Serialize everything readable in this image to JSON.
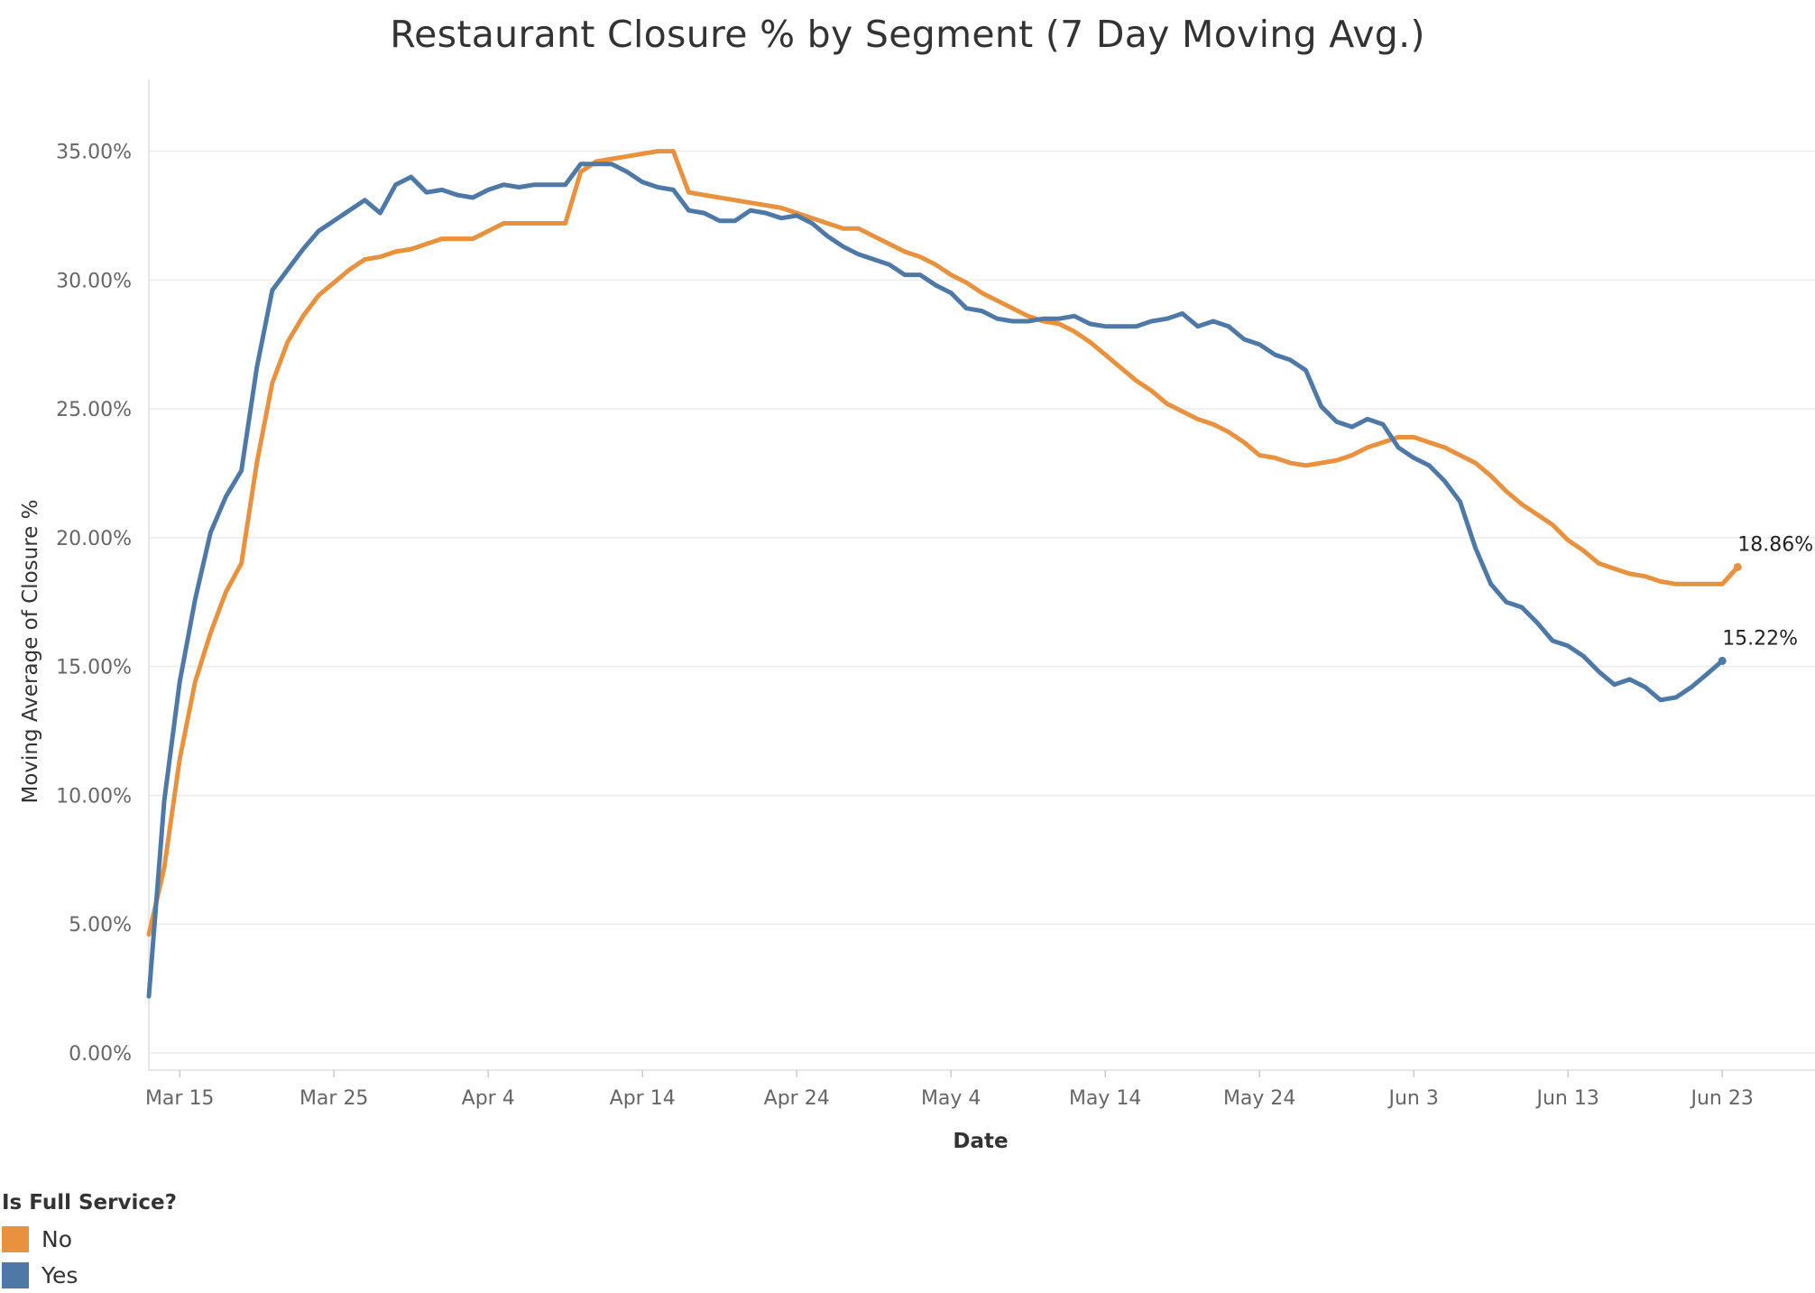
{
  "chart_data": {
    "type": "line",
    "title": "Restaurant Closure % by Segment (7 Day Moving Avg.)",
    "xlabel": "Date",
    "ylabel": "Moving Average of Closure %",
    "x_start": "Mar 13",
    "x_end": "Jun 26",
    "ylim": [
      0,
      36
    ],
    "yticks": [
      0,
      5,
      10,
      15,
      20,
      25,
      30,
      35
    ],
    "ytick_labels": [
      "0.00%",
      "5.00%",
      "10.00%",
      "15.00%",
      "20.00%",
      "25.00%",
      "30.00%",
      "35.00%"
    ],
    "xtick_labels": [
      "Mar 15",
      "Mar 25",
      "Apr 4",
      "Apr 14",
      "Apr 24",
      "May 4",
      "May 14",
      "May 24",
      "Jun 3",
      "Jun 13",
      "Jun 23"
    ],
    "grid": "horizontal",
    "legend": {
      "title": "Is Full Service?",
      "position": "bottom-left"
    },
    "series": [
      {
        "name": "No",
        "color": "#E8923F",
        "end_label": "18.86%",
        "values": [
          4.6,
          7.2,
          11.4,
          14.4,
          16.3,
          17.9,
          19.0,
          22.9,
          26.0,
          27.6,
          28.6,
          29.4,
          29.9,
          30.4,
          30.8,
          30.9,
          31.1,
          31.2,
          31.4,
          31.6,
          31.6,
          31.6,
          31.9,
          32.2,
          32.2,
          32.2,
          32.2,
          32.2,
          34.2,
          34.6,
          34.7,
          34.8,
          34.9,
          35.0,
          35.0,
          33.4,
          33.3,
          33.2,
          33.1,
          33.0,
          32.9,
          32.8,
          32.6,
          32.4,
          32.2,
          32.0,
          32.0,
          31.7,
          31.4,
          31.1,
          30.9,
          30.6,
          30.2,
          29.9,
          29.5,
          29.2,
          28.9,
          28.6,
          28.4,
          28.3,
          28.0,
          27.6,
          27.1,
          26.6,
          26.1,
          25.7,
          25.2,
          24.9,
          24.6,
          24.4,
          24.1,
          23.7,
          23.2,
          23.1,
          22.9,
          22.8,
          22.9,
          23.0,
          23.2,
          23.5,
          23.7,
          23.9,
          23.9,
          23.7,
          23.5,
          23.2,
          22.9,
          22.4,
          21.8,
          21.3,
          20.9,
          20.5,
          19.9,
          19.5,
          19.0,
          18.8,
          18.6,
          18.5,
          18.3,
          18.2,
          18.2,
          18.2,
          18.2,
          18.86
        ]
      },
      {
        "name": "Yes",
        "color": "#4E79A7",
        "end_label": "15.22%",
        "values": [
          2.2,
          9.8,
          14.4,
          17.6,
          20.2,
          21.6,
          22.6,
          26.6,
          29.6,
          30.4,
          31.2,
          31.9,
          32.3,
          32.7,
          33.1,
          32.6,
          33.7,
          34.0,
          33.4,
          33.5,
          33.3,
          33.2,
          33.5,
          33.7,
          33.6,
          33.7,
          33.7,
          33.7,
          34.5,
          34.5,
          34.5,
          34.2,
          33.8,
          33.6,
          33.5,
          32.7,
          32.6,
          32.3,
          32.3,
          32.7,
          32.6,
          32.4,
          32.5,
          32.2,
          31.7,
          31.3,
          31.0,
          30.8,
          30.6,
          30.2,
          30.2,
          29.8,
          29.5,
          28.9,
          28.8,
          28.5,
          28.4,
          28.4,
          28.5,
          28.5,
          28.6,
          28.3,
          28.2,
          28.2,
          28.2,
          28.4,
          28.5,
          28.7,
          28.2,
          28.4,
          28.2,
          27.7,
          27.5,
          27.1,
          26.9,
          26.5,
          25.1,
          24.5,
          24.3,
          24.6,
          24.4,
          23.5,
          23.1,
          22.8,
          22.2,
          21.4,
          19.6,
          18.2,
          17.5,
          17.3,
          16.7,
          16.0,
          15.8,
          15.4,
          14.8,
          14.3,
          14.5,
          14.2,
          13.7,
          13.8,
          14.2,
          14.7,
          15.22
        ]
      }
    ]
  }
}
